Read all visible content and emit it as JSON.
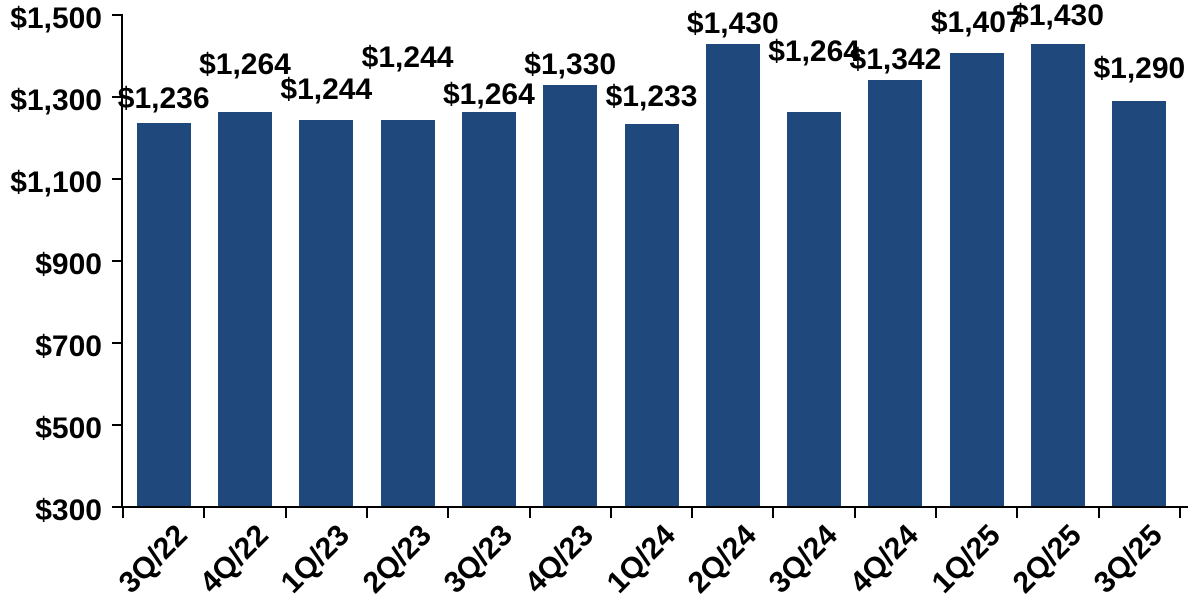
{
  "chart_data": {
    "type": "bar",
    "title": "",
    "xlabel": "",
    "ylabel": "",
    "categories": [
      "3Q/22",
      "4Q/22",
      "1Q/23",
      "2Q/23",
      "3Q/23",
      "4Q/23",
      "1Q/24",
      "2Q/24",
      "3Q/24",
      "4Q/24",
      "1Q/25",
      "2Q/25",
      "3Q/25"
    ],
    "values": [
      1236,
      1264,
      1244,
      1244,
      1264,
      1330,
      1233,
      1430,
      1264,
      1342,
      1407,
      1430,
      1290
    ],
    "value_labels": [
      "$1,236",
      "$1,264",
      "$1,244",
      "$1,244",
      "$1,264",
      "$1,330",
      "$1,233",
      "$1,430",
      "$1,264",
      "$1,342",
      "$1,407",
      "$1,430",
      "$1,290"
    ],
    "y_tick_values": [
      300,
      500,
      700,
      900,
      1100,
      1300,
      1500
    ],
    "y_tick_labels": [
      "$300",
      "$500",
      "$700",
      "$900",
      "$1,100",
      "$1,300",
      "$1,500"
    ],
    "ylim": [
      300,
      1500
    ],
    "grid": false,
    "legend": "none",
    "bar_color": "#1F497D",
    "axis_color": "#000000",
    "text_color": "#000000"
  }
}
